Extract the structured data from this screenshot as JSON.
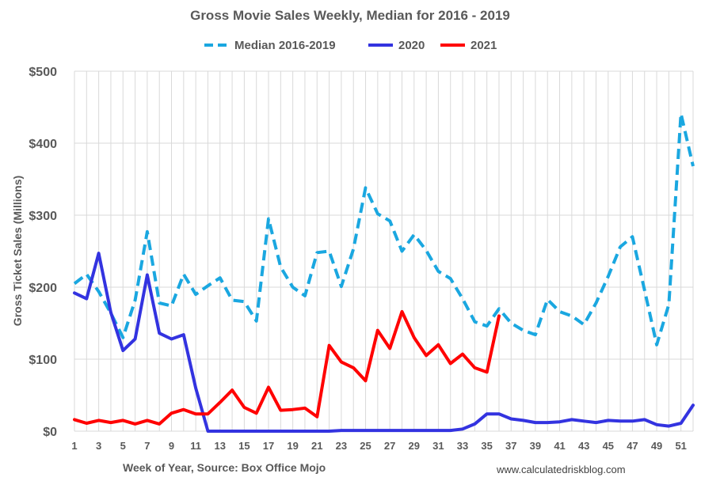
{
  "chart_data": {
    "type": "line",
    "title": "Gross Movie Sales Weekly, Median for 2016 - 2019",
    "xlabel": "Week of Year, Source: Box Office Mojo",
    "ylabel": "Gross Ticket Sales (Millions)",
    "source_note": "www.calculatedriskblog.com",
    "xlim": [
      1,
      52
    ],
    "ylim": [
      0,
      500
    ],
    "x_ticks": [
      1,
      3,
      5,
      7,
      9,
      11,
      13,
      15,
      17,
      19,
      21,
      23,
      25,
      27,
      29,
      31,
      33,
      35,
      37,
      39,
      41,
      43,
      45,
      47,
      49,
      51
    ],
    "y_ticks": [
      0,
      100,
      200,
      300,
      400,
      500
    ],
    "y_tick_labels": [
      "$0",
      "$100",
      "$200",
      "$300",
      "$400",
      "$500"
    ],
    "grid": true,
    "legend_position": "top-center",
    "series": [
      {
        "name": "Median 2016-2019",
        "color": "#1aa7e0",
        "style": "dashed",
        "x": [
          1,
          2,
          3,
          4,
          5,
          6,
          7,
          8,
          9,
          10,
          11,
          12,
          13,
          14,
          15,
          16,
          17,
          18,
          19,
          20,
          21,
          22,
          23,
          24,
          25,
          26,
          27,
          28,
          29,
          30,
          31,
          32,
          33,
          34,
          35,
          36,
          37,
          38,
          39,
          40,
          41,
          42,
          43,
          44,
          45,
          46,
          47,
          48,
          49,
          50,
          51,
          52
        ],
        "values": [
          205,
          218,
          194,
          164,
          130,
          182,
          277,
          178,
          174,
          218,
          190,
          202,
          213,
          182,
          180,
          153,
          295,
          228,
          200,
          188,
          248,
          250,
          201,
          253,
          338,
          302,
          292,
          250,
          273,
          251,
          222,
          212,
          184,
          152,
          146,
          170,
          150,
          140,
          134,
          183,
          166,
          160,
          148,
          178,
          215,
          256,
          270,
          196,
          120,
          176,
          441,
          368
        ]
      },
      {
        "name": "2020",
        "color": "#3333e0",
        "style": "solid",
        "x": [
          1,
          2,
          3,
          4,
          5,
          6,
          7,
          8,
          9,
          10,
          11,
          12,
          13,
          14,
          15,
          16,
          17,
          18,
          19,
          20,
          21,
          22,
          23,
          24,
          25,
          26,
          27,
          28,
          29,
          30,
          31,
          32,
          33,
          34,
          35,
          36,
          37,
          38,
          39,
          40,
          41,
          42,
          43,
          44,
          45,
          46,
          47,
          48,
          49,
          50,
          51,
          52
        ],
        "values": [
          192,
          184,
          247,
          165,
          112,
          128,
          217,
          136,
          128,
          134,
          60,
          0,
          0,
          0,
          0,
          0,
          0,
          0,
          0,
          0,
          0,
          0,
          1,
          1,
          1,
          1,
          1,
          1,
          1,
          1,
          1,
          1,
          3,
          10,
          24,
          24,
          17,
          15,
          12,
          12,
          13,
          16,
          14,
          12,
          15,
          14,
          14,
          16,
          9,
          7,
          11,
          36
        ]
      },
      {
        "name": "2021",
        "color": "#ff0000",
        "style": "solid",
        "x": [
          1,
          2,
          3,
          4,
          5,
          6,
          7,
          8,
          9,
          10,
          11,
          12,
          13,
          14,
          15,
          16,
          17,
          18,
          19,
          20,
          21,
          22,
          23,
          24,
          25,
          26,
          27,
          28,
          29,
          30,
          31,
          32,
          33,
          34,
          35,
          36
        ],
        "values": [
          16,
          11,
          15,
          12,
          15,
          10,
          15,
          10,
          25,
          30,
          24,
          24,
          40,
          57,
          33,
          25,
          61,
          29,
          30,
          32,
          20,
          119,
          96,
          88,
          70,
          140,
          115,
          166,
          130,
          105,
          120,
          94,
          107,
          88,
          82,
          160
        ]
      }
    ]
  }
}
